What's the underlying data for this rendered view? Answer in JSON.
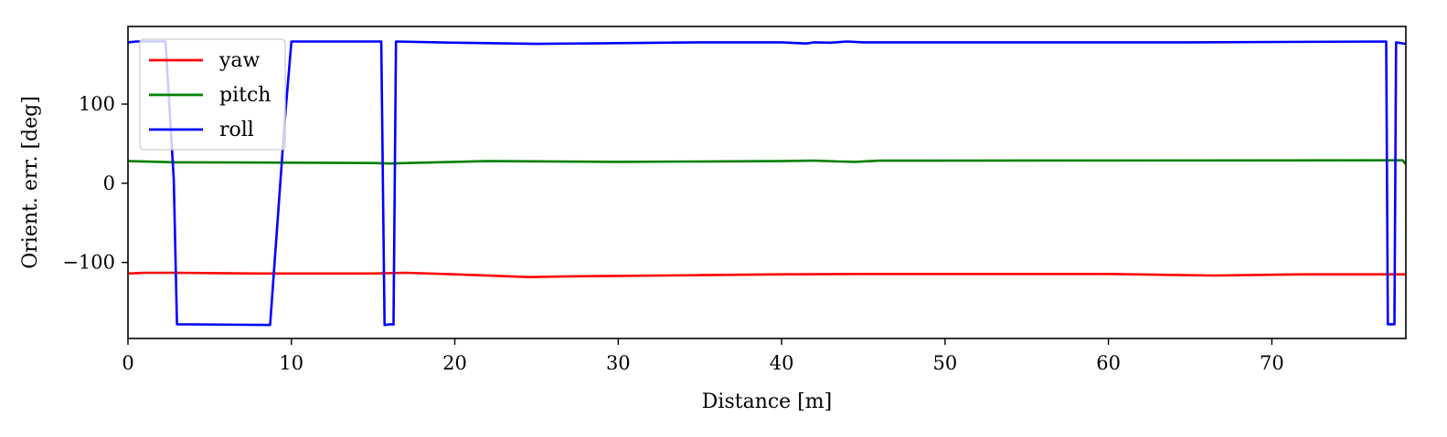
{
  "chart_data": {
    "type": "line",
    "xlabel": "Distance [m]",
    "ylabel": "Orient. err. [deg]",
    "xlim": [
      0,
      78.2
    ],
    "ylim": [
      -196,
      198
    ],
    "xticks": [
      0,
      10,
      20,
      30,
      40,
      50,
      60,
      70
    ],
    "xtick_labels": [
      "0",
      "10",
      "20",
      "30",
      "40",
      "50",
      "60",
      "70"
    ],
    "yticks": [
      -100,
      0,
      100
    ],
    "ytick_labels": [
      "−100",
      "0",
      "100"
    ],
    "grid": false,
    "legend": "top-left",
    "series": [
      {
        "name": "yaw",
        "color": "#ff0000",
        "points": [
          [
            0,
            -114
          ],
          [
            1,
            -113
          ],
          [
            3,
            -113
          ],
          [
            8,
            -114
          ],
          [
            15,
            -114
          ],
          [
            17,
            -113
          ],
          [
            20,
            -115
          ],
          [
            24.5,
            -118.5
          ],
          [
            27,
            -117.5
          ],
          [
            35,
            -116
          ],
          [
            40,
            -115
          ],
          [
            45,
            -114.5
          ],
          [
            55,
            -114.5
          ],
          [
            60,
            -114.5
          ],
          [
            66.5,
            -116.5
          ],
          [
            72,
            -115
          ],
          [
            78.2,
            -115
          ]
        ]
      },
      {
        "name": "pitch",
        "color": "#008000",
        "points": [
          [
            0,
            28
          ],
          [
            3,
            26.5
          ],
          [
            10,
            26
          ],
          [
            15,
            25.5
          ],
          [
            16,
            25
          ],
          [
            20,
            27
          ],
          [
            22,
            28
          ],
          [
            30,
            27
          ],
          [
            40,
            28
          ],
          [
            42,
            28.5
          ],
          [
            43.5,
            27.5
          ],
          [
            44.5,
            27
          ],
          [
            46,
            28.5
          ],
          [
            78,
            29
          ],
          [
            78.2,
            24
          ]
        ]
      },
      {
        "name": "roll",
        "color": "#0000ff",
        "points": [
          [
            0,
            178
          ],
          [
            0.5,
            179
          ],
          [
            2.3,
            179
          ],
          [
            2.8,
            5
          ],
          [
            3,
            -178
          ],
          [
            8.7,
            -179
          ],
          [
            9.6,
            80
          ],
          [
            10,
            179
          ],
          [
            15.5,
            179
          ],
          [
            15.7,
            -179
          ],
          [
            16.1,
            -178
          ],
          [
            16.25,
            -178.5
          ],
          [
            16.4,
            179
          ],
          [
            20,
            177.5
          ],
          [
            25,
            176
          ],
          [
            35,
            178
          ],
          [
            40,
            178
          ],
          [
            41.5,
            176.5
          ],
          [
            42,
            178
          ],
          [
            43,
            177.5
          ],
          [
            44,
            179
          ],
          [
            45,
            178
          ],
          [
            55,
            178
          ],
          [
            65,
            178
          ],
          [
            77,
            179
          ],
          [
            77.1,
            -178
          ],
          [
            77.5,
            -178
          ],
          [
            77.6,
            178
          ],
          [
            78.2,
            176
          ]
        ]
      }
    ]
  }
}
